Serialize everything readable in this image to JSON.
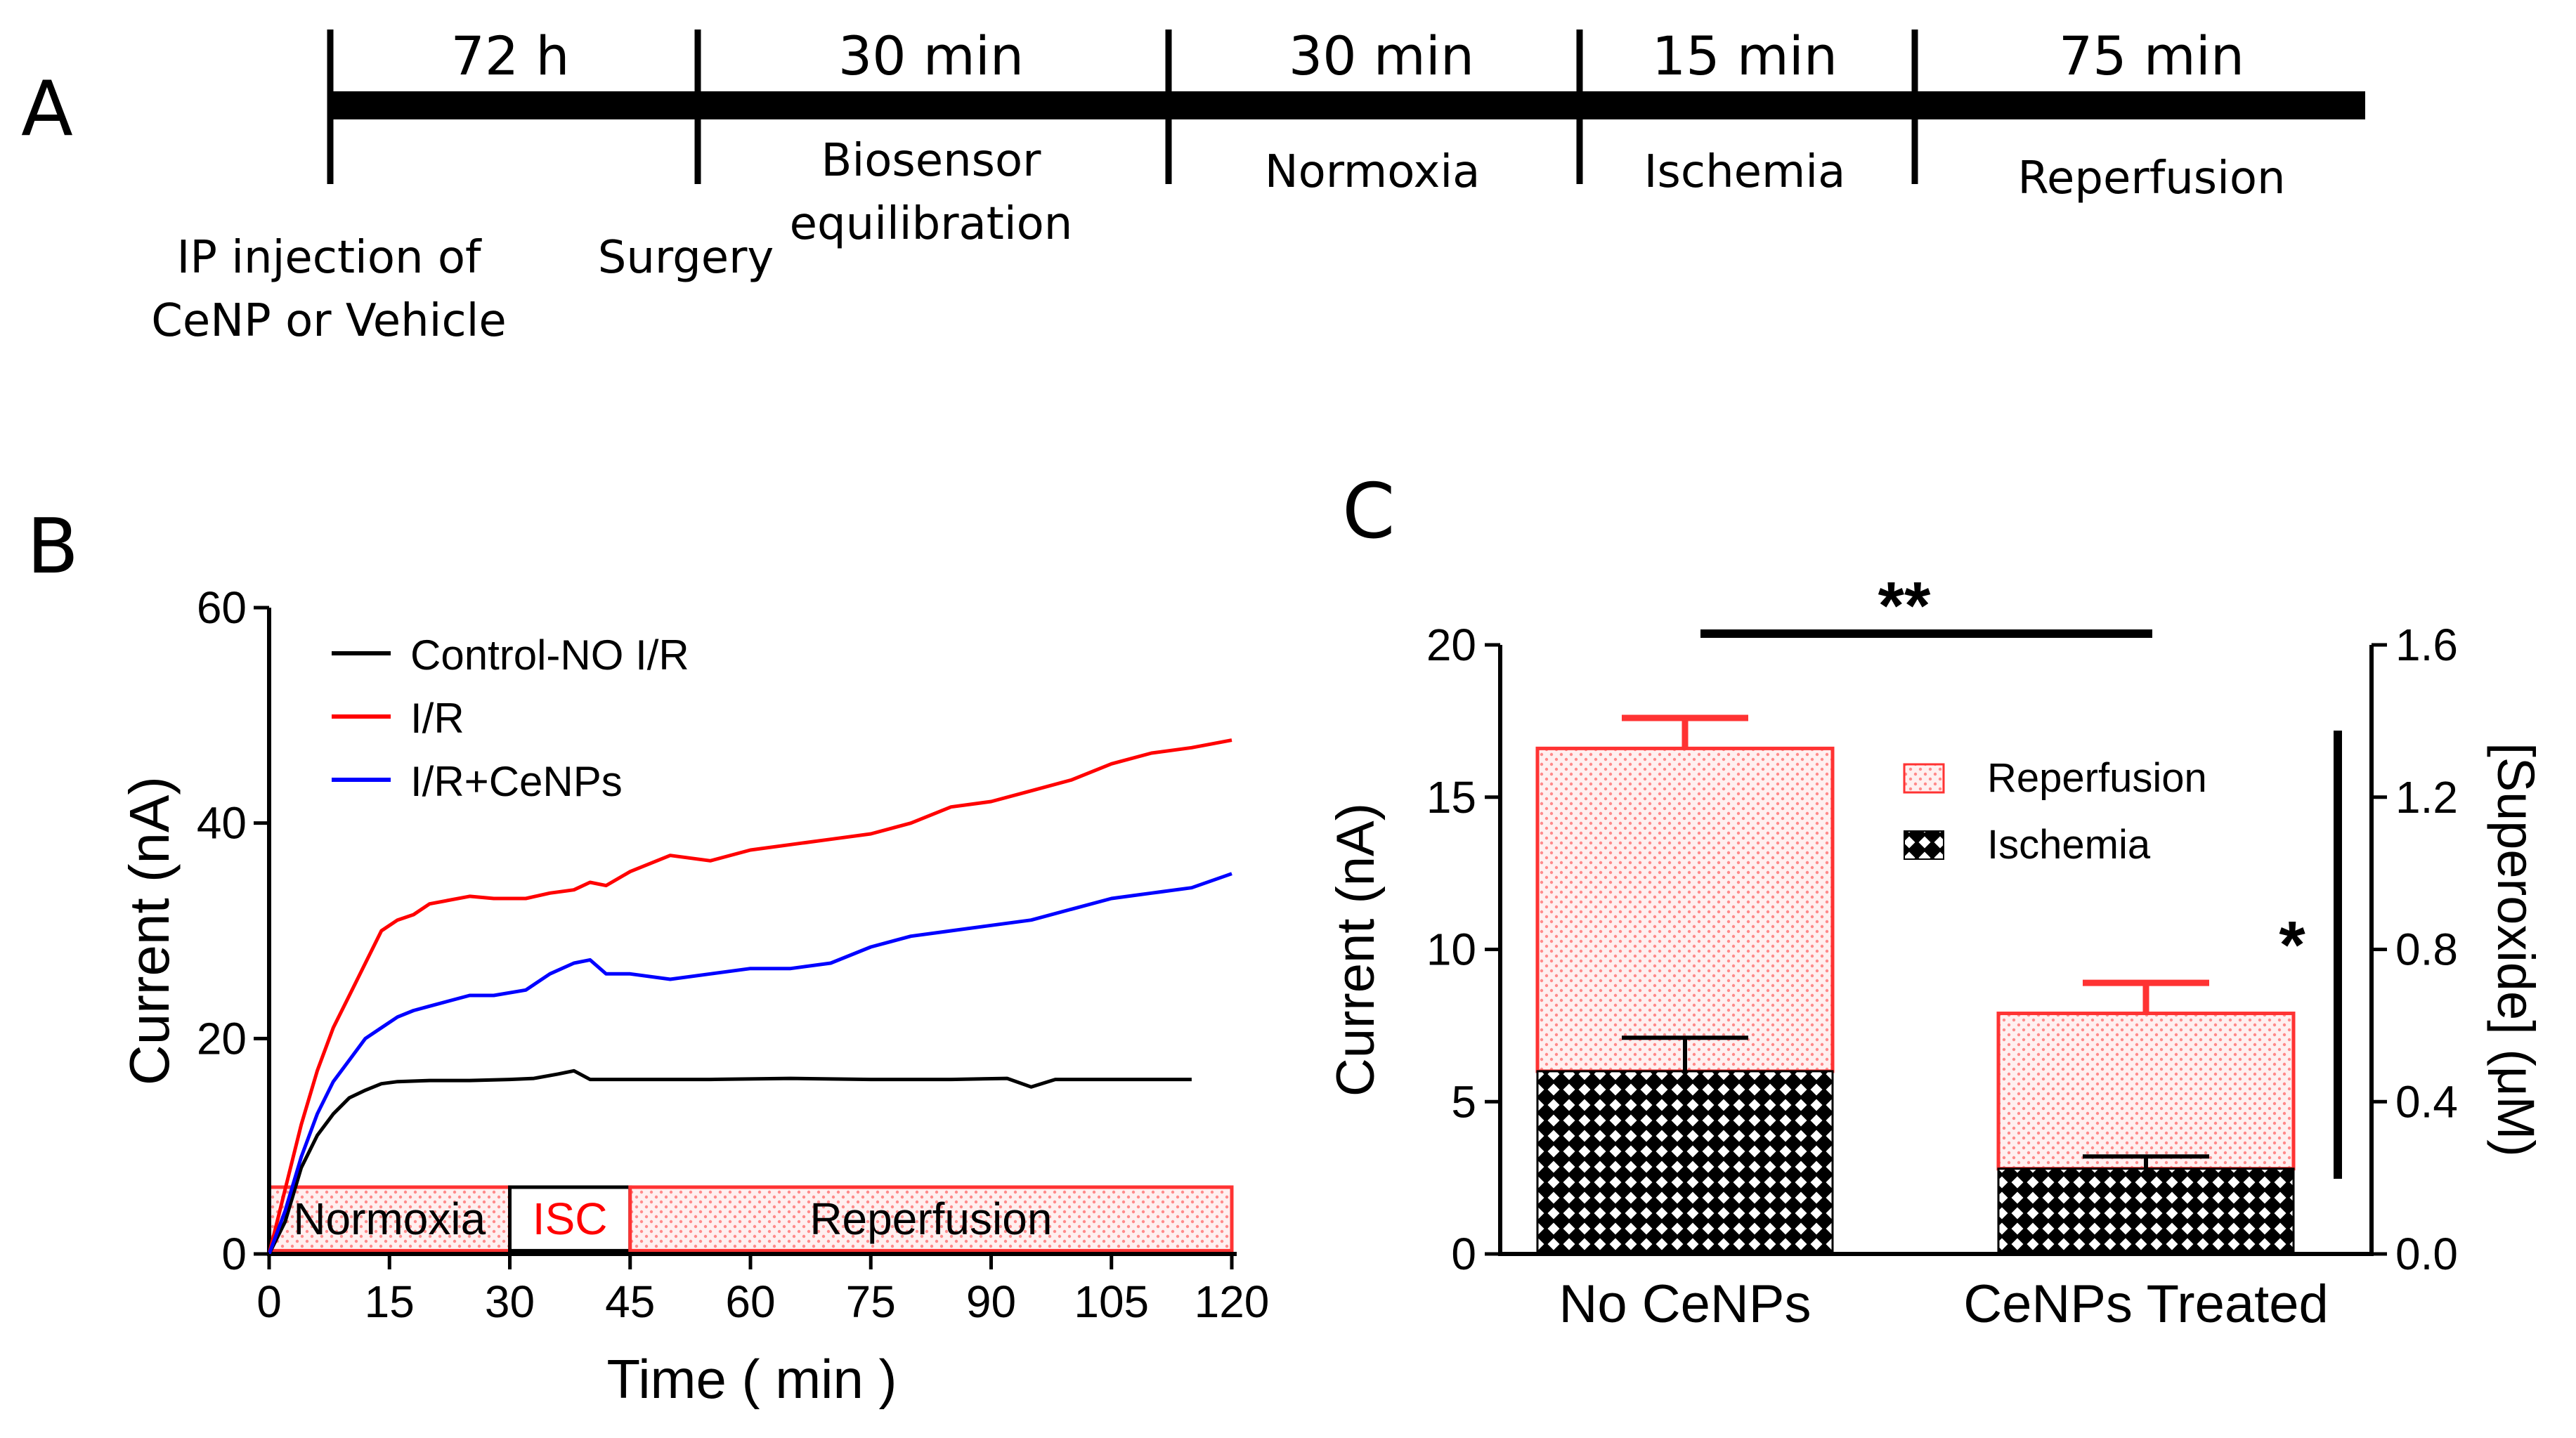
{
  "panels": {
    "a": {
      "label": "A"
    },
    "b": {
      "label": "B"
    },
    "c": {
      "label": "C"
    }
  },
  "timeline": {
    "durations": [
      "72 h",
      "30 min",
      "30 min",
      "15 min",
      "75 min"
    ],
    "below_labels": [
      [
        "IP injection of",
        "CeNP or Vehicle"
      ],
      [
        "Surgery"
      ],
      [
        "Biosensor",
        "equilibration"
      ],
      [
        "Normoxia"
      ],
      [
        "Ischemia"
      ],
      [
        "Reperfusion"
      ]
    ]
  },
  "chart_data": [
    {
      "type": "line",
      "title": "",
      "xlabel": "Time ( min )",
      "ylabel": "Current (nA)",
      "xlim": [
        0,
        120
      ],
      "ylim": [
        0,
        60
      ],
      "xticks": [
        "0",
        "15",
        "30",
        "45",
        "60",
        "75",
        "90",
        "105",
        "120"
      ],
      "yticks": [
        "0",
        "20",
        "40",
        "60"
      ],
      "legend_position": "top-left",
      "phases": [
        {
          "label": "Normoxia",
          "start": 0,
          "end": 30
        },
        {
          "label": "ISC",
          "start": 30,
          "end": 45
        },
        {
          "label": "Reperfusion",
          "start": 45,
          "end": 120
        }
      ],
      "series": [
        {
          "name": "Control-NO I/R",
          "color": "#000000",
          "x": [
            0,
            2,
            4,
            6,
            8,
            10,
            12,
            14,
            16,
            20,
            25,
            30,
            33,
            36,
            38,
            40,
            45,
            55,
            65,
            75,
            85,
            92,
            95,
            98,
            105,
            115
          ],
          "y": [
            0,
            3,
            8,
            11,
            13,
            14.5,
            15.2,
            15.8,
            16,
            16.1,
            16.1,
            16.2,
            16.3,
            16.7,
            17,
            16.2,
            16.2,
            16.2,
            16.3,
            16.2,
            16.2,
            16.3,
            15.5,
            16.2,
            16.2,
            16.2
          ]
        },
        {
          "name": "I/R",
          "color": "#ff0000",
          "x": [
            0,
            2,
            4,
            6,
            8,
            10,
            12,
            14,
            16,
            18,
            20,
            25,
            28,
            32,
            35,
            38,
            40,
            42,
            45,
            50,
            55,
            60,
            65,
            70,
            75,
            80,
            85,
            90,
            95,
            100,
            105,
            110,
            115,
            120
          ],
          "y": [
            0,
            6,
            12,
            17,
            21,
            24,
            27,
            30,
            31,
            31.5,
            32.5,
            33.2,
            33,
            33,
            33.5,
            33.8,
            34.5,
            34.2,
            35.5,
            37,
            36.5,
            37.5,
            38,
            38.5,
            39,
            40,
            41.5,
            42,
            43,
            44,
            45.5,
            46.5,
            47,
            47.7
          ]
        },
        {
          "name": "I/R+CeNPs",
          "color": "#0000ff",
          "x": [
            0,
            2,
            4,
            6,
            8,
            10,
            12,
            14,
            16,
            18,
            20,
            25,
            28,
            32,
            35,
            38,
            40,
            42,
            45,
            50,
            55,
            60,
            65,
            70,
            75,
            80,
            85,
            90,
            95,
            100,
            105,
            110,
            115,
            120
          ],
          "y": [
            0,
            4,
            9,
            13,
            16,
            18,
            20,
            21,
            22,
            22.6,
            23,
            24,
            24,
            24.5,
            26,
            27,
            27.3,
            26,
            26,
            25.5,
            26,
            26.5,
            26.5,
            27,
            28.5,
            29.5,
            30,
            30.5,
            31,
            32,
            33,
            33.5,
            34,
            35.3
          ]
        }
      ]
    },
    {
      "type": "bar",
      "stacked": true,
      "title": "",
      "xlabel": "",
      "ylabel": "Current (nA)",
      "ylabel_right": "[Superoxide] (μM)",
      "ylim": [
        0,
        20
      ],
      "ylim_right": [
        0,
        1.6
      ],
      "yticks": [
        "0",
        "5",
        "10",
        "15",
        "20"
      ],
      "yticks_right": [
        "0.0",
        "0.4",
        "0.8",
        "1.2",
        "1.6"
      ],
      "categories": [
        "No CeNPs",
        "CeNPs Treated"
      ],
      "series": [
        {
          "name": "Ischemia",
          "values": [
            6.0,
            2.8
          ],
          "errors": [
            1.1,
            0.4
          ],
          "pattern": "black-crosshatch"
        },
        {
          "name": "Reperfusion",
          "values": [
            10.6,
            5.1
          ],
          "errors": [
            1.0,
            1.0
          ],
          "pattern": "red-dots",
          "color": "#ff3333"
        }
      ],
      "legend_position": "top-center",
      "annotations": [
        "**",
        "*"
      ]
    }
  ]
}
